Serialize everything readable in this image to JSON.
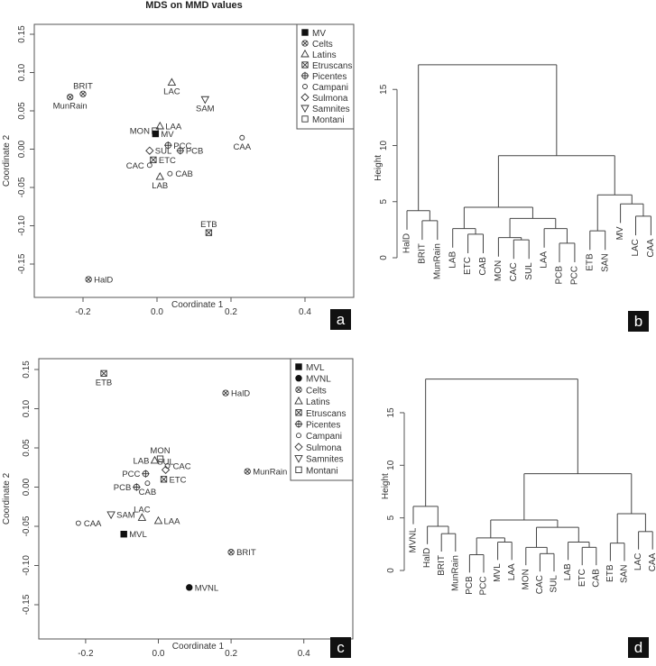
{
  "chart_data": [
    {
      "type": "scatter",
      "panel_label": "a",
      "title": "MDS on MMD values",
      "xlabel": "Coordinate 1",
      "ylabel": "Coordinate 2",
      "xticks": [
        "-0.2",
        "0.0",
        "0.2",
        "0.4"
      ],
      "xtick_values": [
        -0.2,
        0.0,
        0.2,
        0.4
      ],
      "yticks": [
        "-0.15",
        "-0.10",
        "-0.05",
        "0.00",
        "0.05",
        "0.10",
        "0.15"
      ],
      "ytick_values": [
        -0.15,
        -0.1,
        -0.05,
        0.0,
        0.05,
        0.1,
        0.15
      ],
      "legend_position": "top-right",
      "legend": [
        {
          "name": "MV",
          "symbol": "filled-square"
        },
        {
          "name": "Celts",
          "symbol": "circle-x"
        },
        {
          "name": "Latins",
          "symbol": "triangle"
        },
        {
          "name": "Etruscans",
          "symbol": "square-x"
        },
        {
          "name": "Picentes",
          "symbol": "circle-plus"
        },
        {
          "name": "Campani",
          "symbol": "small-circle"
        },
        {
          "name": "Sulmona",
          "symbol": "diamond"
        },
        {
          "name": "Samnites",
          "symbol": "down-triangle"
        },
        {
          "name": "Montani",
          "symbol": "square"
        }
      ],
      "points": [
        {
          "label": "BRIT",
          "group": "Celts",
          "x": -0.2,
          "y": 0.072,
          "label_side": "top"
        },
        {
          "label": "MunRain",
          "group": "Celts",
          "x": -0.235,
          "y": 0.068,
          "label_side": "bottom"
        },
        {
          "label": "HalD",
          "group": "Celts",
          "x": -0.185,
          "y": -0.17,
          "label_side": "right"
        },
        {
          "label": "LAC",
          "group": "Latins",
          "x": 0.04,
          "y": 0.087,
          "label_side": "bottom"
        },
        {
          "label": "LAA",
          "group": "Latins",
          "x": 0.008,
          "y": 0.03,
          "label_side": "right"
        },
        {
          "label": "LAB",
          "group": "Latins",
          "x": 0.008,
          "y": -0.036,
          "label_side": "bottom"
        },
        {
          "label": "SAM",
          "group": "Samnites",
          "x": 0.13,
          "y": 0.065,
          "label_side": "bottom"
        },
        {
          "label": "MON",
          "group": "Montani",
          "x": -0.005,
          "y": 0.024,
          "label_side": "left"
        },
        {
          "label": "MV",
          "group": "MV",
          "x": -0.004,
          "y": 0.02,
          "label_side": "right"
        },
        {
          "label": "PCC",
          "group": "Picentes",
          "x": 0.03,
          "y": 0.005,
          "label_side": "right"
        },
        {
          "label": "PCB",
          "group": "Picentes",
          "x": 0.063,
          "y": -0.002,
          "label_side": "right"
        },
        {
          "label": "SUL",
          "group": "Sulmona",
          "x": -0.02,
          "y": -0.002,
          "label_side": "right"
        },
        {
          "label": "ETC",
          "group": "Etruscans",
          "x": -0.01,
          "y": -0.014,
          "label_side": "right"
        },
        {
          "label": "CAC",
          "group": "Campani",
          "x": -0.02,
          "y": -0.021,
          "label_side": "left"
        },
        {
          "label": "CAB",
          "group": "Campani",
          "x": 0.035,
          "y": -0.032,
          "label_side": "right"
        },
        {
          "label": "CAA",
          "group": "Campani",
          "x": 0.23,
          "y": 0.015,
          "label_side": "bottom"
        },
        {
          "label": "ETB",
          "group": "Etruscans",
          "x": 0.14,
          "y": -0.109,
          "label_side": "top"
        }
      ]
    },
    {
      "type": "dendrogram",
      "panel_label": "b",
      "ylabel": "Height",
      "yticks": [
        "0",
        "5",
        "10",
        "15"
      ],
      "ytick_values": [
        0,
        5,
        10,
        15
      ],
      "tree": {
        "h": 17.2,
        "c": [
          {
            "h": 4.2,
            "c": [
              "HalD",
              {
                "h": 3.3,
                "c": [
                  "BRIT",
                  "MunRain"
                ]
              }
            ]
          },
          {
            "h": 9.1,
            "c": [
              {
                "h": 4.5,
                "c": [
                  {
                    "h": 2.6,
                    "c": [
                      "LAB",
                      {
                        "h": 2.1,
                        "c": [
                          "ETC",
                          "CAB"
                        ]
                      }
                    ]
                  },
                  {
                    "h": 3.5,
                    "c": [
                      {
                        "h": 1.8,
                        "c": [
                          "MON",
                          {
                            "h": 1.6,
                            "c": [
                              "CAC",
                              "SUL"
                            ]
                          }
                        ]
                      },
                      {
                        "h": 2.6,
                        "c": [
                          "LAA",
                          {
                            "h": 1.3,
                            "c": [
                              "PCB",
                              "PCC"
                            ]
                          }
                        ]
                      }
                    ]
                  }
                ]
              },
              {
                "h": 5.6,
                "c": [
                  {
                    "h": 2.4,
                    "c": [
                      "ETB",
                      "SAN"
                    ]
                  },
                  {
                    "h": 4.8,
                    "c": [
                      "MV",
                      {
                        "h": 3.7,
                        "c": [
                          "LAC",
                          "CAA"
                        ]
                      }
                    ]
                  }
                ]
              }
            ]
          }
        ]
      }
    },
    {
      "type": "scatter",
      "panel_label": "c",
      "xlabel": "Coordinate 1",
      "ylabel": "Coordinate 2",
      "xticks": [
        "-0.2",
        "0.0",
        "0.2",
        "0.4"
      ],
      "xtick_values": [
        -0.2,
        0.0,
        0.2,
        0.4
      ],
      "yticks": [
        "-0.15",
        "-0.10",
        "-0.05",
        "0.00",
        "0.05",
        "0.10",
        "0.15"
      ],
      "ytick_values": [
        -0.15,
        -0.1,
        -0.05,
        0.0,
        0.05,
        0.1,
        0.15
      ],
      "legend_position": "top-right",
      "legend": [
        {
          "name": "MVL",
          "symbol": "filled-square"
        },
        {
          "name": "MVNL",
          "symbol": "filled-circle"
        },
        {
          "name": "Celts",
          "symbol": "circle-x"
        },
        {
          "name": "Latins",
          "symbol": "triangle"
        },
        {
          "name": "Etruscans",
          "symbol": "square-x"
        },
        {
          "name": "Picentes",
          "symbol": "circle-plus"
        },
        {
          "name": "Campani",
          "symbol": "small-circle"
        },
        {
          "name": "Sulmona",
          "symbol": "diamond"
        },
        {
          "name": "Samnites",
          "symbol": "down-triangle"
        },
        {
          "name": "Montani",
          "symbol": "square"
        }
      ],
      "points": [
        {
          "label": "ETB",
          "group": "Etruscans",
          "x": -0.15,
          "y": 0.145,
          "label_side": "bottom"
        },
        {
          "label": "HalD",
          "group": "Celts",
          "x": 0.185,
          "y": 0.12,
          "label_side": "right"
        },
        {
          "label": "MunRain",
          "group": "Celts",
          "x": 0.245,
          "y": 0.02,
          "label_side": "right"
        },
        {
          "label": "BRIT",
          "group": "Celts",
          "x": 0.2,
          "y": -0.083,
          "label_side": "right"
        },
        {
          "label": "MVNL",
          "group": "MVNL",
          "x": 0.085,
          "y": -0.128,
          "label_side": "right"
        },
        {
          "label": "MVL",
          "group": "MVL",
          "x": -0.095,
          "y": -0.06,
          "label_side": "right"
        },
        {
          "label": "CAA",
          "group": "Campani",
          "x": -0.22,
          "y": -0.046,
          "label_side": "right"
        },
        {
          "label": "SAM",
          "group": "Samnites",
          "x": -0.13,
          "y": -0.035,
          "label_side": "right"
        },
        {
          "label": "LAC",
          "group": "Latins",
          "x": -0.045,
          "y": -0.039,
          "label_side": "top"
        },
        {
          "label": "LAA",
          "group": "Latins",
          "x": 0.0,
          "y": -0.043,
          "label_side": "right"
        },
        {
          "label": "PCB",
          "group": "Picentes",
          "x": -0.06,
          "y": 0.0,
          "label_side": "left"
        },
        {
          "label": "CAB",
          "group": "Campani",
          "x": -0.03,
          "y": 0.005,
          "label_side": "bottom"
        },
        {
          "label": "PCC",
          "group": "Picentes",
          "x": -0.035,
          "y": 0.017,
          "label_side": "left"
        },
        {
          "label": "SUL",
          "group": "Sulmona",
          "x": 0.02,
          "y": 0.022,
          "label_side": "top"
        },
        {
          "label": "CAC",
          "group": "Campani",
          "x": 0.025,
          "y": 0.027,
          "label_side": "right"
        },
        {
          "label": "ETC",
          "group": "Etruscans",
          "x": 0.015,
          "y": 0.01,
          "label_side": "right"
        },
        {
          "label": "LAB",
          "group": "Latins",
          "x": -0.01,
          "y": 0.034,
          "label_side": "left"
        },
        {
          "label": "MON",
          "group": "Montani",
          "x": 0.005,
          "y": 0.036,
          "label_side": "top"
        }
      ]
    },
    {
      "type": "dendrogram",
      "panel_label": "d",
      "ylabel": "Height",
      "yticks": [
        "0",
        "5",
        "10",
        "15"
      ],
      "ytick_values": [
        0,
        5,
        10,
        15
      ],
      "tree": {
        "h": 18.2,
        "c": [
          {
            "h": 6.1,
            "c": [
              "MVNL",
              {
                "h": 4.2,
                "c": [
                  "HalD",
                  {
                    "h": 3.5,
                    "c": [
                      "BRIT",
                      "MunRain"
                    ]
                  }
                ]
              }
            ]
          },
          {
            "h": 9.2,
            "c": [
              {
                "h": 4.8,
                "c": [
                  {
                    "h": 3.1,
                    "c": [
                      {
                        "h": 1.5,
                        "c": [
                          "PCB",
                          "PCC"
                        ]
                      },
                      {
                        "h": 2.7,
                        "c": [
                          "MVL",
                          "LAA"
                        ]
                      }
                    ]
                  },
                  {
                    "h": 4.1,
                    "c": [
                      {
                        "h": 2.2,
                        "c": [
                          "MON",
                          {
                            "h": 1.6,
                            "c": [
                              "CAC",
                              "SUL"
                            ]
                          }
                        ]
                      },
                      {
                        "h": 2.7,
                        "c": [
                          "LAB",
                          {
                            "h": 2.2,
                            "c": [
                              "ETC",
                              "CAB"
                            ]
                          }
                        ]
                      }
                    ]
                  }
                ]
              },
              {
                "h": 5.4,
                "c": [
                  {
                    "h": 2.6,
                    "c": [
                      "ETB",
                      "SAN"
                    ]
                  },
                  {
                    "h": 3.7,
                    "c": [
                      "LAC",
                      "CAA"
                    ]
                  }
                ]
              }
            ]
          }
        ]
      }
    }
  ]
}
